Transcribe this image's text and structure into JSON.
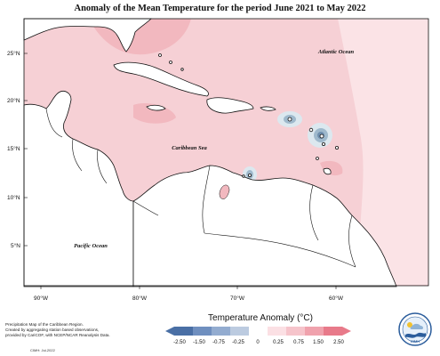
{
  "title": "Anomaly of the Mean Temperature for the period June 2021 to May 2022",
  "map": {
    "lat_labels": [
      "25°N",
      "20°N",
      "15°N",
      "10°N",
      "5°N"
    ],
    "lon_labels": [
      "90°W",
      "80°W",
      "70°W",
      "60°W"
    ],
    "place_labels": {
      "atlantic": "Atlantic Ocean",
      "caribbean": "Caribbean Sea",
      "pacific": "Pacific Ocean"
    },
    "colors": {
      "ocean_base": "#f6d0d5",
      "warm_low": "#fbe3e6",
      "warm_mid": "#f2b8bf",
      "cool_low": "#dce8ef",
      "cool_mid": "#9fb9cc",
      "cool_high": "#6f8fae",
      "land": "#ffffff",
      "outline": "#111111"
    }
  },
  "legend": {
    "title": "Temperature Anomaly (°C)",
    "ticks": [
      "-2.50",
      "-1.50",
      "-0.75",
      "-0.25",
      "0",
      "0.25",
      "0.75",
      "1.50",
      "2.50"
    ],
    "colors": [
      "#4a6fa5",
      "#6f8fbf",
      "#93acd0",
      "#bccbe0",
      "#ffffff",
      "#fbe0e4",
      "#f6c4cb",
      "#f0a2ad",
      "#e87a8a"
    ]
  },
  "credit": {
    "lines": [
      "Precipitation Map of the Caribbean Region.",
      "Created by aggregating station based observations,",
      "provided by CariCOF, with NCEP/NCAR Reanalysis Data."
    ],
    "date": "CIMH: Jul-2022"
  },
  "logo": {
    "text": "CIMH"
  }
}
